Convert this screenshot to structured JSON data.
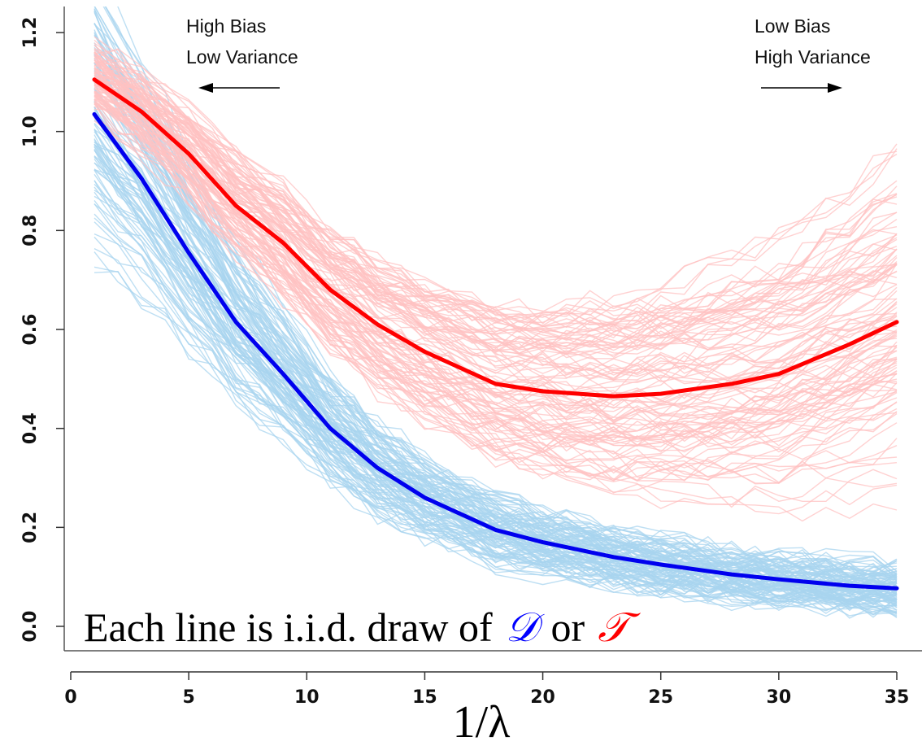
{
  "chart_data": {
    "type": "line",
    "xlabel": "1/λ",
    "ylabel": "",
    "xlim": [
      0,
      35
    ],
    "ylim": [
      0,
      1.2
    ],
    "x_ticks": [
      "0",
      "5",
      "10",
      "15",
      "20",
      "25",
      "30",
      "35"
    ],
    "y_ticks": [
      "0.0",
      "0.2",
      "0.4",
      "0.6",
      "0.8",
      "1.0",
      "1.2"
    ],
    "x": [
      1,
      3,
      5,
      7,
      9,
      11,
      13,
      15,
      18,
      20,
      23,
      25,
      28,
      30,
      33,
      35
    ],
    "series": [
      {
        "color": "#ff0000",
        "values": [
          1.105,
          1.04,
          0.955,
          0.85,
          0.775,
          0.68,
          0.61,
          0.555,
          0.49,
          0.475,
          0.465,
          0.47,
          0.49,
          0.51,
          0.57,
          0.615
        ]
      },
      {
        "color": "#0000ee",
        "values": [
          1.035,
          0.905,
          0.755,
          0.615,
          0.51,
          0.4,
          0.32,
          0.26,
          0.195,
          0.17,
          0.14,
          0.125,
          0.105,
          0.095,
          0.082,
          0.077
        ]
      }
    ],
    "background_line_colors": {
      "test": "#ffc2c2",
      "train": "#a8d4ef"
    },
    "annotations": {
      "left_line1": "High Bias",
      "left_line2": "Low Variance",
      "right_line1": "Low Bias",
      "right_line2": "High Variance"
    },
    "caption": {
      "text": "Each line is i.i.d. draw of",
      "or": "or",
      "d_symbol": "𝒟",
      "t_symbol": "𝒯",
      "d_color": "#0000ff",
      "t_color": "#ff0000"
    },
    "grid": false,
    "legend": "none"
  }
}
